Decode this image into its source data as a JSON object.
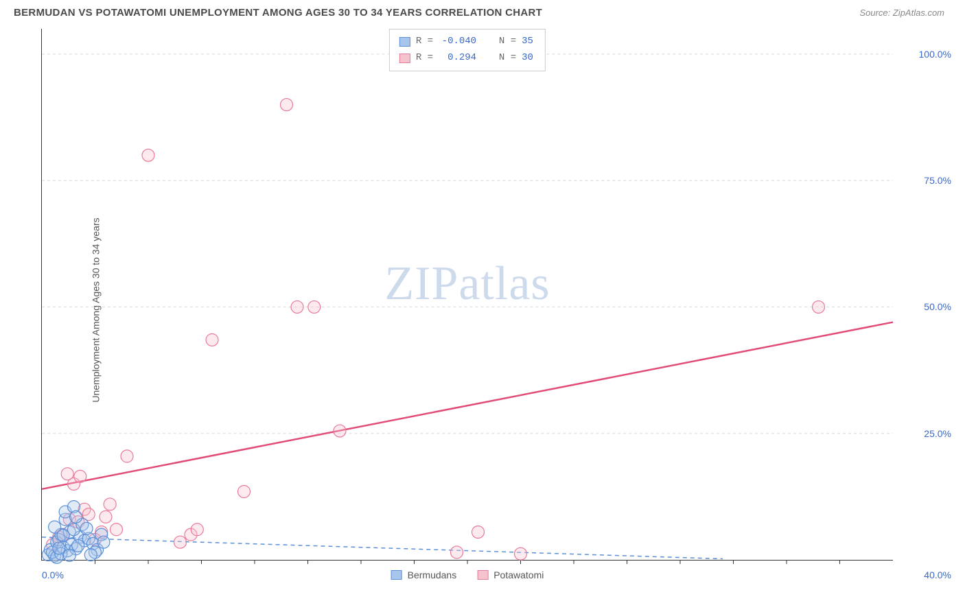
{
  "header": {
    "title": "BERMUDAN VS POTAWATOMI UNEMPLOYMENT AMONG AGES 30 TO 34 YEARS CORRELATION CHART",
    "source": "Source: ZipAtlas.com"
  },
  "axes": {
    "y_label": "Unemployment Among Ages 30 to 34 years",
    "x_min_label": "0.0%",
    "x_max_label": "40.0%",
    "x_min": 0,
    "x_max": 40,
    "y_min": 0,
    "y_max": 105,
    "y_ticks": [
      {
        "v": 25,
        "label": "25.0%"
      },
      {
        "v": 50,
        "label": "50.0%"
      },
      {
        "v": 75,
        "label": "75.0%"
      },
      {
        "v": 100,
        "label": "100.0%"
      }
    ],
    "x_minor_ticks": [
      2.5,
      5,
      7.5,
      10,
      12.5,
      15,
      17.5,
      20,
      22.5,
      25,
      27.5,
      30,
      32.5,
      35,
      37.5
    ]
  },
  "colors": {
    "blue_fill": "#a8c5ec",
    "blue_stroke": "#5b8fd6",
    "blue_text": "#3968c8",
    "pink_fill": "#f5c3ce",
    "pink_stroke": "#e97a99",
    "pink_line": "#e34b77",
    "grid": "#d8d8d8",
    "tick_label": "#3968c8"
  },
  "watermark": {
    "zip": "ZIP",
    "atlas": "atlas"
  },
  "stats": {
    "series1": {
      "r_label": "R =",
      "r": "-0.040",
      "n_label": "N =",
      "n": "35"
    },
    "series2": {
      "r_label": "R =",
      "r": "0.294",
      "n_label": "N =",
      "n": "30"
    }
  },
  "legend": {
    "item1": "Bermudans",
    "item2": "Potawatomi"
  },
  "series": {
    "bermudans": {
      "color_fill": "#a8c5ec",
      "color_stroke": "#5b8fd6",
      "trend": {
        "x1": 0,
        "y1": 4.5,
        "x2": 32,
        "y2": 0.2,
        "dashed": true
      },
      "points": [
        [
          0.3,
          1.0
        ],
        [
          0.4,
          2.0
        ],
        [
          0.6,
          0.8
        ],
        [
          0.7,
          3.5
        ],
        [
          0.5,
          1.5
        ],
        [
          0.8,
          4.0
        ],
        [
          1.0,
          2.5
        ],
        [
          0.9,
          5.0
        ],
        [
          1.2,
          1.8
        ],
        [
          0.6,
          6.5
        ],
        [
          1.4,
          3.0
        ],
        [
          1.1,
          8.0
        ],
        [
          1.6,
          2.2
        ],
        [
          1.8,
          4.5
        ],
        [
          0.7,
          0.5
        ],
        [
          1.3,
          5.5
        ],
        [
          2.0,
          3.8
        ],
        [
          1.5,
          6.0
        ],
        [
          1.7,
          2.8
        ],
        [
          0.9,
          1.2
        ],
        [
          2.2,
          4.2
        ],
        [
          1.9,
          7.0
        ],
        [
          2.4,
          3.2
        ],
        [
          1.1,
          9.5
        ],
        [
          2.6,
          2.0
        ],
        [
          2.8,
          5.0
        ],
        [
          1.3,
          0.9
        ],
        [
          2.1,
          6.2
        ],
        [
          2.5,
          1.5
        ],
        [
          2.9,
          3.5
        ],
        [
          1.5,
          10.5
        ],
        [
          1.0,
          4.8
        ],
        [
          0.8,
          2.3
        ],
        [
          1.6,
          8.5
        ],
        [
          2.3,
          1.0
        ]
      ]
    },
    "potawatomi": {
      "color_fill": "#f5c3ce",
      "color_stroke": "#e97a99",
      "trend": {
        "x1": 0,
        "y1": 14.0,
        "x2": 40,
        "y2": 47.0,
        "dashed": false
      },
      "points": [
        [
          0.5,
          3.0
        ],
        [
          1.0,
          5.0
        ],
        [
          1.3,
          8.0
        ],
        [
          1.5,
          15.0
        ],
        [
          1.8,
          16.5
        ],
        [
          2.0,
          10.0
        ],
        [
          2.8,
          5.5
        ],
        [
          3.0,
          8.5
        ],
        [
          3.5,
          6.0
        ],
        [
          4.0,
          20.5
        ],
        [
          5.0,
          80.0
        ],
        [
          6.5,
          3.5
        ],
        [
          7.0,
          5.0
        ],
        [
          7.3,
          6.0
        ],
        [
          8.0,
          43.5
        ],
        [
          9.5,
          13.5
        ],
        [
          11.5,
          90.0
        ],
        [
          12.0,
          50.0
        ],
        [
          12.8,
          50.0
        ],
        [
          14.0,
          25.5
        ],
        [
          19.5,
          1.5
        ],
        [
          20.5,
          5.5
        ],
        [
          22.5,
          1.2
        ],
        [
          36.5,
          50.0
        ],
        [
          1.2,
          17.0
        ],
        [
          2.5,
          4.0
        ],
        [
          3.2,
          11.0
        ],
        [
          1.7,
          7.5
        ],
        [
          0.8,
          4.5
        ],
        [
          2.2,
          9.0
        ]
      ]
    }
  }
}
